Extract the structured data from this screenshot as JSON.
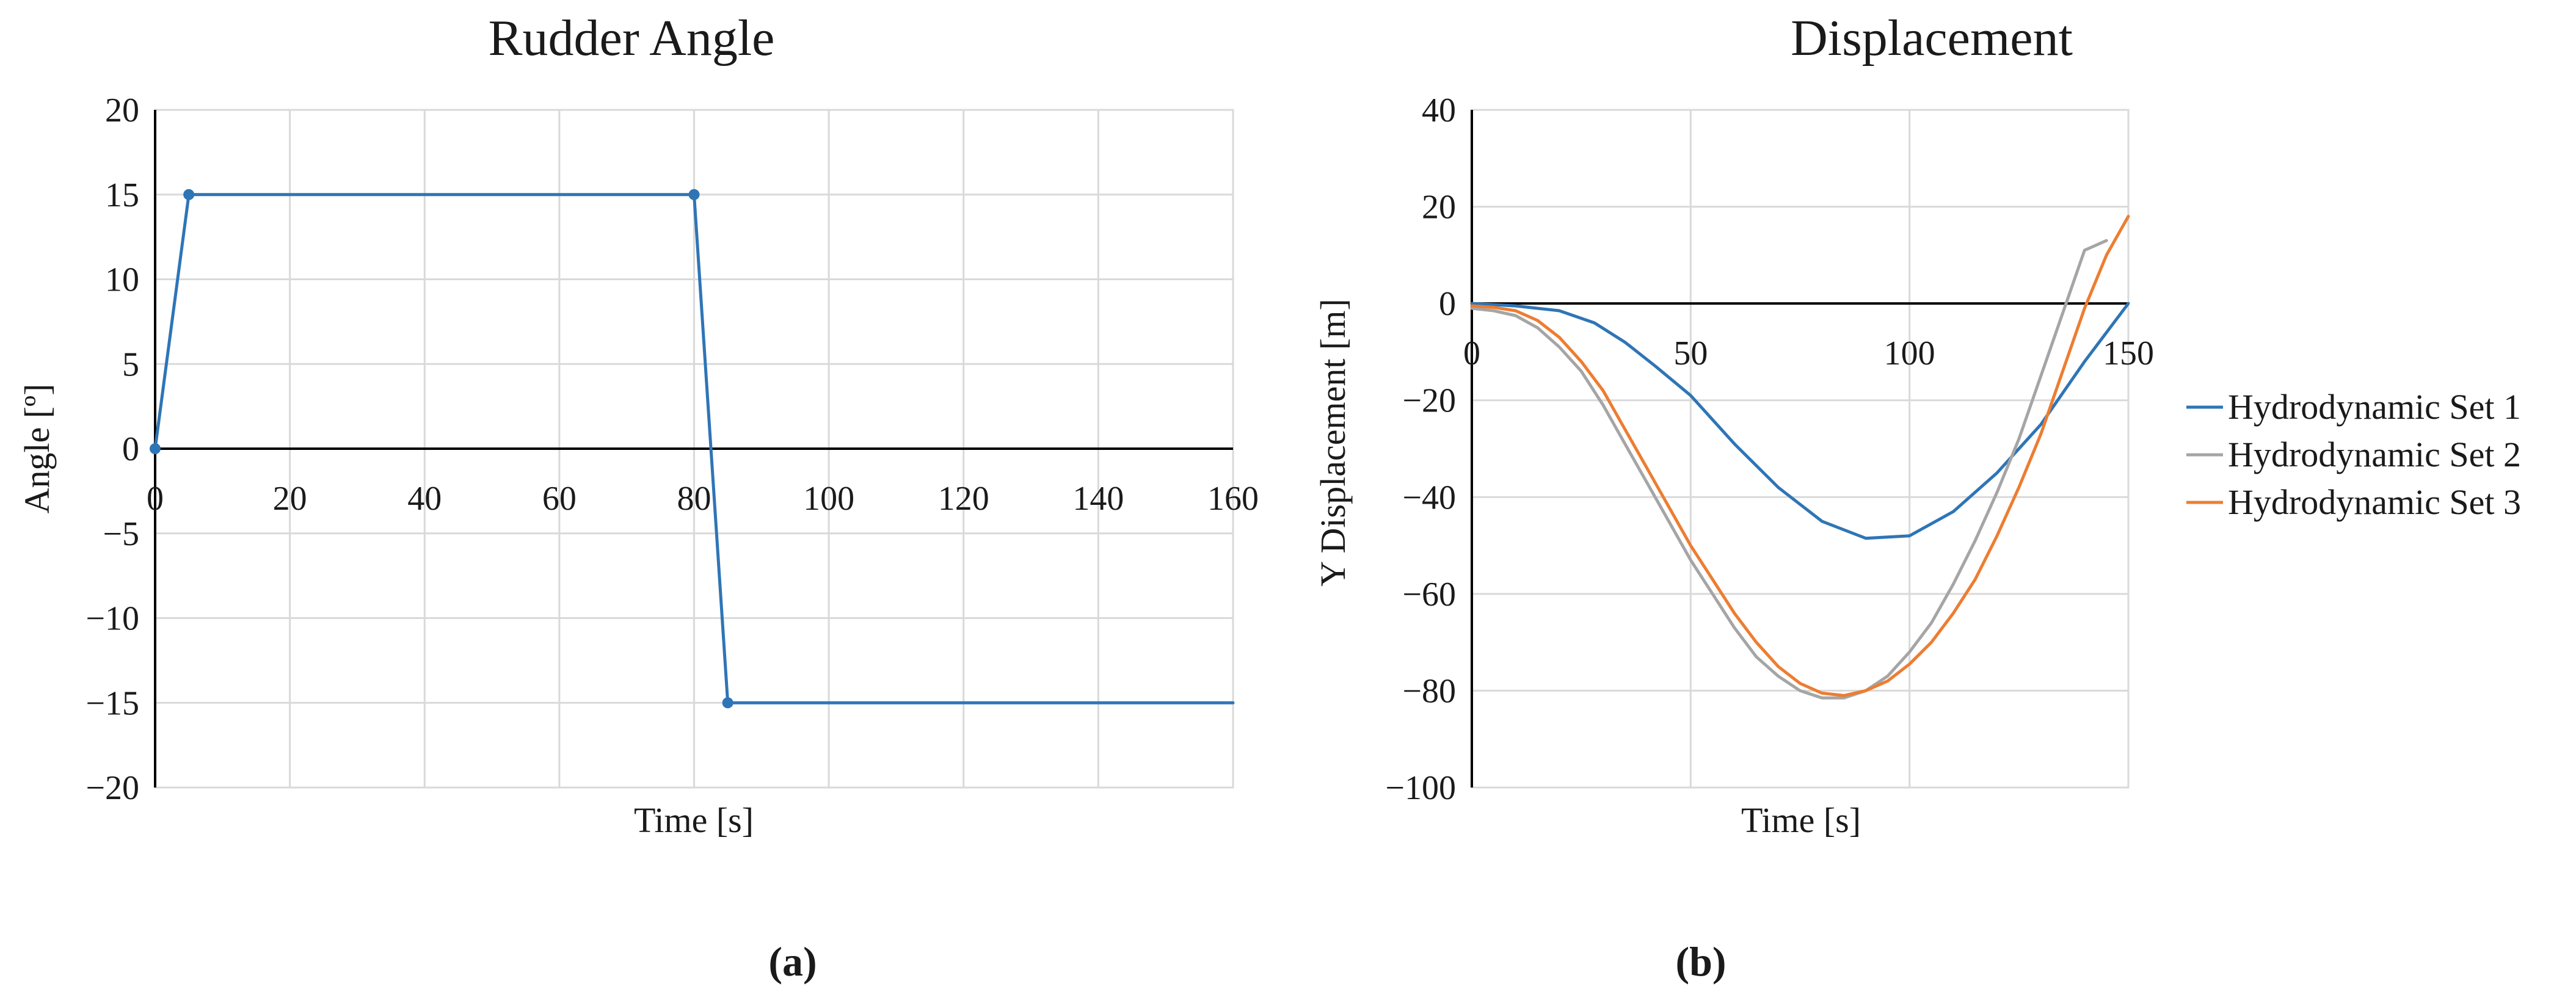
{
  "chart_data": [
    {
      "type": "line",
      "title": "Rudder Angle",
      "xlabel": "Time [s]",
      "ylabel": "Angle [º]",
      "xlim": [
        0,
        160
      ],
      "ylim": [
        -20,
        20
      ],
      "xticks": [
        0,
        20,
        40,
        60,
        80,
        100,
        120,
        140,
        160
      ],
      "yticks": [
        20,
        15,
        10,
        5,
        0,
        -5,
        -10,
        -15,
        -20
      ],
      "xtick_labels": [
        "0",
        "20",
        "40",
        "60",
        "80",
        "100",
        "120",
        "140",
        "160"
      ],
      "ytick_labels": [
        "20",
        "15",
        "10",
        "5",
        "0",
        "−5",
        "−10",
        "−15",
        "−20"
      ],
      "grid": true,
      "panel_label": "(a)",
      "series": [
        {
          "name": "Rudder Angle",
          "color": "#2e75b6",
          "markers": true,
          "x": [
            0,
            5,
            80,
            85,
            160
          ],
          "y": [
            0,
            15,
            15,
            -15,
            -15
          ],
          "marked": [
            true,
            true,
            true,
            true,
            false
          ]
        }
      ]
    },
    {
      "type": "line",
      "title": "Displacement",
      "xlabel": "Time [s]",
      "ylabel": "Y Displacement [m]",
      "xlim": [
        0,
        150
      ],
      "ylim": [
        -100,
        40
      ],
      "xticks": [
        0,
        50,
        100,
        150
      ],
      "yticks": [
        40,
        20,
        0,
        -20,
        -40,
        -60,
        -80,
        -100
      ],
      "xtick_labels": [
        "0",
        "50",
        "100",
        "150"
      ],
      "ytick_labels": [
        "40",
        "20",
        "0",
        "−20",
        "−40",
        "−60",
        "−80",
        "−100"
      ],
      "grid": true,
      "legend_position": "right",
      "panel_label": "(b)",
      "series": [
        {
          "name": "Hydrodynamic Set 1",
          "color": "#2e75b6",
          "x": [
            0,
            10,
            20,
            28,
            35,
            42,
            50,
            60,
            70,
            80,
            90,
            100,
            110,
            120,
            130,
            140,
            150
          ],
          "y": [
            0,
            -0.5,
            -1.5,
            -4,
            -8,
            -13,
            -19,
            -29,
            -38,
            -45,
            -48.5,
            -48,
            -43,
            -35,
            -25,
            -12,
            0
          ]
        },
        {
          "name": "Hydrodynamic Set 2",
          "color": "#a5a5a5",
          "x": [
            0,
            5,
            10,
            15,
            20,
            25,
            30,
            35,
            40,
            45,
            50,
            55,
            60,
            65,
            70,
            75,
            80,
            85,
            90,
            95,
            100,
            105,
            110,
            115,
            120,
            125,
            130,
            135,
            140,
            145
          ],
          "y": [
            -1,
            -1.5,
            -2.5,
            -5,
            -9,
            -14,
            -21,
            -29,
            -37,
            -45,
            -53,
            -60,
            -67,
            -73,
            -77,
            -80,
            -81.5,
            -81.5,
            -80,
            -77,
            -72,
            -66,
            -58,
            -49,
            -39,
            -28,
            -15,
            -2,
            11,
            13
          ]
        },
        {
          "name": "Hydrodynamic Set 3",
          "color": "#ed7d31",
          "x": [
            0,
            5,
            10,
            15,
            20,
            25,
            30,
            35,
            40,
            45,
            50,
            55,
            60,
            65,
            70,
            75,
            80,
            85,
            90,
            95,
            100,
            105,
            110,
            115,
            120,
            125,
            130,
            135,
            140,
            145,
            150
          ],
          "y": [
            -0.5,
            -0.8,
            -1.5,
            -3.5,
            -7,
            -12,
            -18,
            -26,
            -34,
            -42,
            -50,
            -57,
            -64,
            -70,
            -75,
            -78.5,
            -80.5,
            -81,
            -80,
            -78,
            -74.5,
            -70,
            -64,
            -57,
            -48,
            -38,
            -27,
            -14,
            -1,
            10,
            18
          ]
        }
      ]
    }
  ]
}
